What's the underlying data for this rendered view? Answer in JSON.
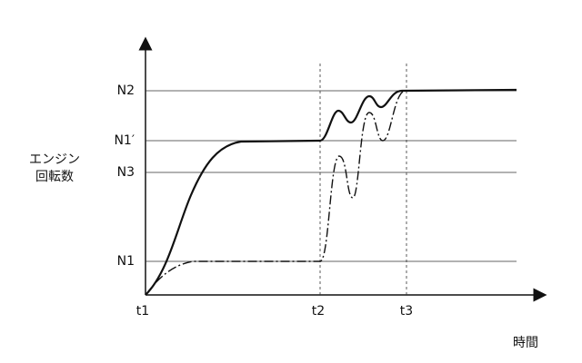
{
  "y_axis": {
    "label_lines": [
      "エンジン",
      "回転数"
    ]
  },
  "x_axis": {
    "label": "時間"
  },
  "levels": [
    "N2",
    "N1′",
    "N3",
    "N1"
  ],
  "times": [
    "t1",
    "t2",
    "t3"
  ]
}
